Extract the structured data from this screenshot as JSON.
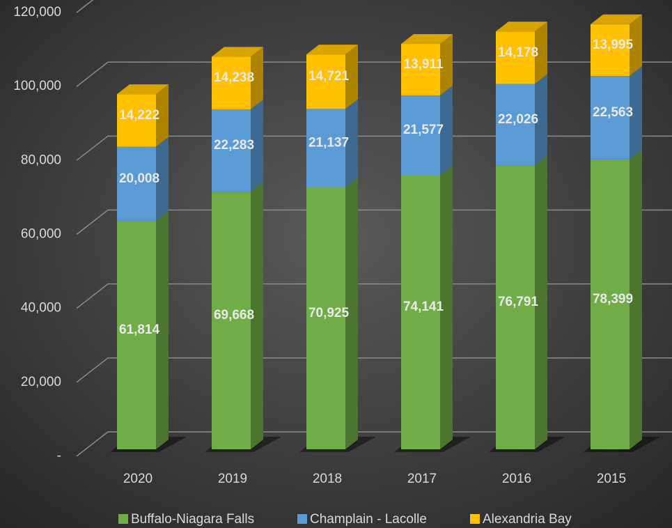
{
  "chart_data": {
    "type": "bar3d_stacked",
    "categories": [
      "2020",
      "2019",
      "2018",
      "2017",
      "2016",
      "2015"
    ],
    "series": [
      {
        "name": "Buffalo-Niagara Falls",
        "color": "#70ad47",
        "values": [
          61814,
          69668,
          70925,
          74141,
          76791,
          78399
        ],
        "value_labels": [
          "61,814",
          "69,668",
          "70,925",
          "74,141",
          "76,791",
          "78,399"
        ]
      },
      {
        "name": "Champlain - Lacolle",
        "color": "#5b9bd5",
        "values": [
          20008,
          22283,
          21137,
          21577,
          22026,
          22563
        ],
        "value_labels": [
          "20,008",
          "22,283",
          "21,137",
          "21,577",
          "22,026",
          "22,563"
        ]
      },
      {
        "name": "Alexandria Bay",
        "color": "#ffc000",
        "values": [
          14222,
          14238,
          14721,
          13911,
          14178,
          13995
        ],
        "value_labels": [
          "14,222",
          "14,238",
          "14,721",
          "13,911",
          "14,178",
          "13,995"
        ]
      }
    ],
    "ylim": [
      0,
      120000
    ],
    "yticks": [
      {
        "value": 0,
        "label": "-"
      },
      {
        "value": 20000,
        "label": "20,000"
      },
      {
        "value": 40000,
        "label": "40,000"
      },
      {
        "value": 60000,
        "label": "60,000"
      },
      {
        "value": 80000,
        "label": "80,000"
      },
      {
        "value": 100000,
        "label": "100,000"
      },
      {
        "value": 120000,
        "label": "120,000"
      }
    ],
    "grid": true,
    "legend": "bottom"
  }
}
